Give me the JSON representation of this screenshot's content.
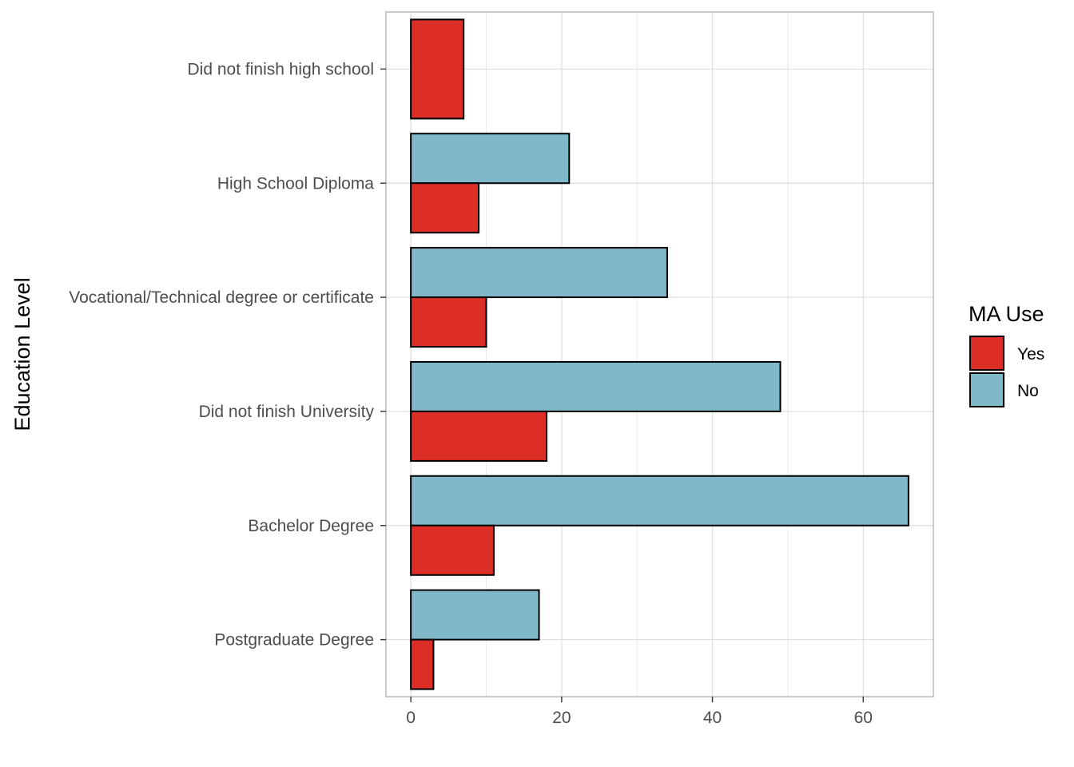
{
  "chart_data": {
    "type": "bar",
    "orientation": "horizontal",
    "title": "",
    "xlabel": "",
    "ylabel": "Education Level",
    "categories": [
      "Did not finish high school",
      "High School Diploma",
      "Vocational/Technical degree or certificate",
      "Did not finish University",
      "Bachelor Degree",
      "Postgraduate Degree"
    ],
    "series": [
      {
        "name": "Yes",
        "color": "#dc2e27",
        "values": [
          7,
          9,
          10,
          18,
          11,
          3
        ]
      },
      {
        "name": "No",
        "color": "#81b8c9",
        "values": [
          0,
          21,
          34,
          49,
          66,
          17
        ]
      }
    ],
    "xlim": [
      -3.3,
      69.3
    ],
    "xticks": [
      0,
      20,
      40,
      60
    ],
    "xtick_labels": [
      "0",
      "20",
      "40",
      "60"
    ],
    "grid": true,
    "legend": {
      "title": "MA Use",
      "position": "right",
      "entries": [
        "Yes",
        "No"
      ]
    }
  }
}
